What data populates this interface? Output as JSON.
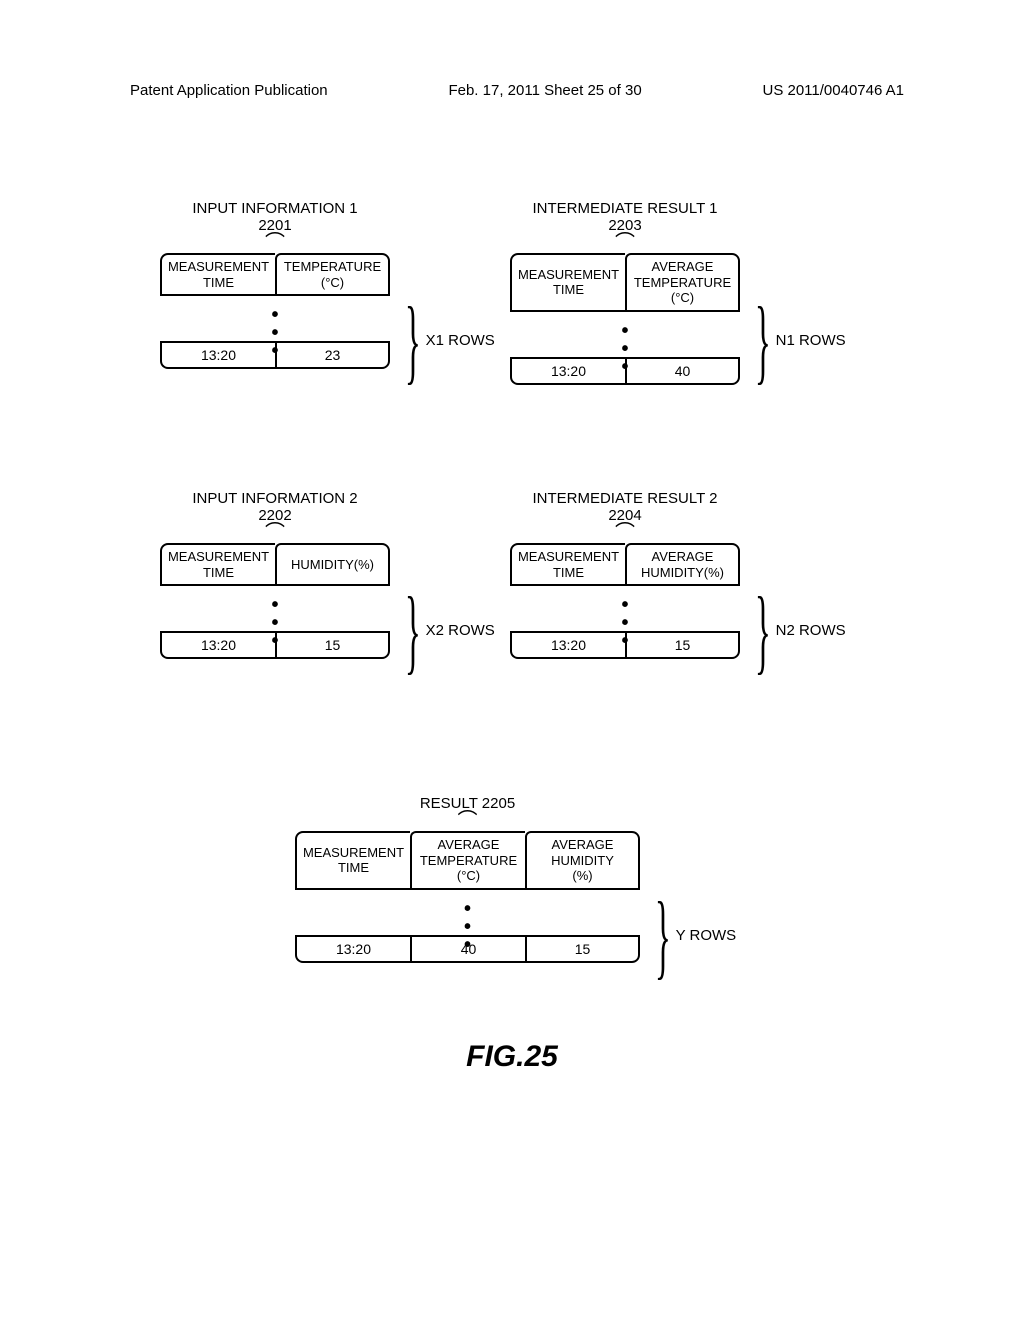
{
  "header": {
    "left": "Patent Application Publication",
    "center": "Feb. 17, 2011  Sheet 25 of 30",
    "right": "US 2011/0040746 A1"
  },
  "tables": {
    "input1": {
      "title": "INPUT INFORMATION 1\n2201",
      "col1_header": "MEASUREMENT\nTIME",
      "col2_header": "TEMPERATURE\n(°C)",
      "row_time": "13:20",
      "row_value": "23",
      "rows_label": "X1 ROWS"
    },
    "intermediate1": {
      "title": "INTERMEDIATE RESULT 1\n2203",
      "col1_header": "MEASUREMENT\nTIME",
      "col2_header": "AVERAGE\nTEMPERATURE\n(°C)",
      "row_time": "13:20",
      "row_value": "40",
      "rows_label": "N1 ROWS"
    },
    "input2": {
      "title": "INPUT INFORMATION 2\n2202",
      "col1_header": "MEASUREMENT\nTIME",
      "col2_header": "HUMIDITY(%)",
      "row_time": "13:20",
      "row_value": "15",
      "rows_label": "X2 ROWS"
    },
    "intermediate2": {
      "title": "INTERMEDIATE RESULT 2\n2204",
      "col1_header": "MEASUREMENT\nTIME",
      "col2_header": "AVERAGE\nHUMIDITY(%)",
      "row_time": "13:20",
      "row_value": "15",
      "rows_label": "N2 ROWS"
    },
    "result": {
      "title": "RESULT 2205",
      "col1_header": "MEASUREMENT\nTIME",
      "col2_header": "AVERAGE\nTEMPERATURE\n(°C)",
      "col3_header": "AVERAGE\nHUMIDITY\n(%)",
      "row_time": "13:20",
      "row_value1": "40",
      "row_value2": "15",
      "rows_label": "Y ROWS"
    }
  },
  "figure_label": "FIG.25",
  "layout": {
    "backgroundColor": "#ffffff",
    "borderColor": "#000000",
    "textColor": "#000000"
  }
}
